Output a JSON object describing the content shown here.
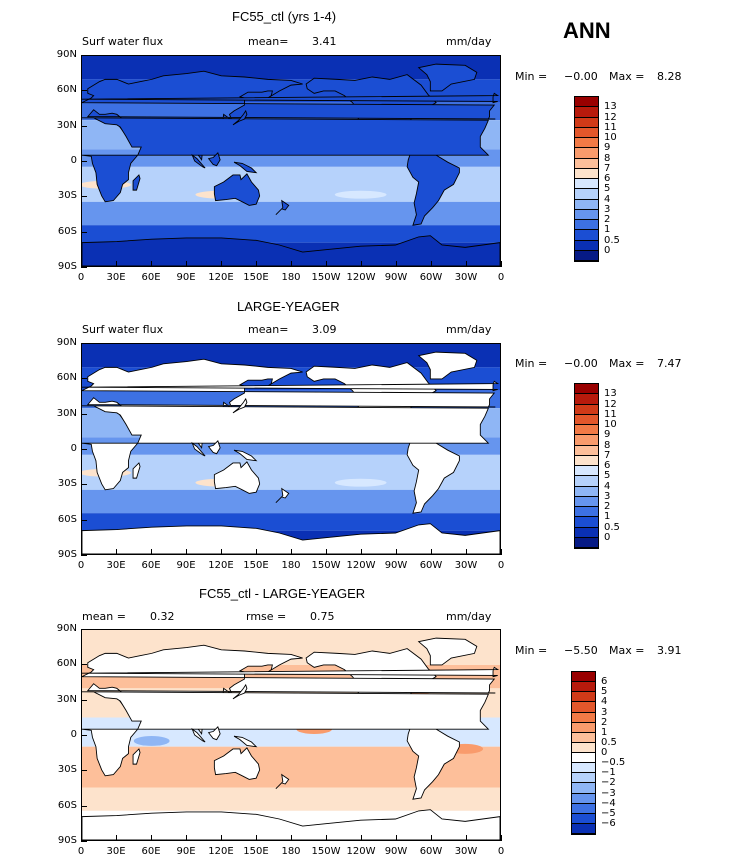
{
  "season": "ANN",
  "lat_labels": [
    "90N",
    "60N",
    "30N",
    "0",
    "30S",
    "60S",
    "90S"
  ],
  "lon_labels": [
    "0",
    "30E",
    "60E",
    "90E",
    "120E",
    "150E",
    "180",
    "150W",
    "120W",
    "90W",
    "60W",
    "30W",
    "0"
  ],
  "panels": [
    {
      "title": "FC55_ctl (yrs 1-4)",
      "left_label": "Surf water flux",
      "stat1_label": "mean=",
      "stat1_value": "3.41",
      "stat2_label": "",
      "stat2_value": "",
      "units": "mm/day",
      "min_label": "Min =",
      "min_value": "−0.00",
      "max_label": "Max =",
      "max_value": "8.28",
      "colorbar_labels": [
        "13",
        "12",
        "11",
        "10",
        "9",
        "8",
        "7",
        "6",
        "5",
        "4",
        "3",
        "2",
        "1",
        "0.5",
        "0"
      ],
      "colorbar_colors": [
        "#990000",
        "#b71a0c",
        "#d03a18",
        "#e3572b",
        "#f27a46",
        "#f99b6c",
        "#fdbf9a",
        "#fde3cc",
        "#d7e8ff",
        "#b6d2fb",
        "#8fb6f5",
        "#6695ee",
        "#3d71e3",
        "#1b4ed3",
        "#0a30b4",
        "#061a85"
      ],
      "land_fill": "#1b4ed3"
    },
    {
      "title": "LARGE-YEAGER",
      "left_label": "Surf water flux",
      "stat1_label": "mean=",
      "stat1_value": "3.09",
      "stat2_label": "",
      "stat2_value": "",
      "units": "mm/day",
      "min_label": "Min =",
      "min_value": "−0.00",
      "max_label": "Max =",
      "max_value": "7.47",
      "colorbar_labels": [
        "13",
        "12",
        "11",
        "10",
        "9",
        "8",
        "7",
        "6",
        "5",
        "4",
        "3",
        "2",
        "1",
        "0.5",
        "0"
      ],
      "colorbar_colors": [
        "#990000",
        "#b71a0c",
        "#d03a18",
        "#e3572b",
        "#f27a46",
        "#f99b6c",
        "#fdbf9a",
        "#fde3cc",
        "#d7e8ff",
        "#b6d2fb",
        "#8fb6f5",
        "#6695ee",
        "#3d71e3",
        "#1b4ed3",
        "#0a30b4",
        "#061a85"
      ],
      "land_fill": "#ffffff"
    },
    {
      "title": "FC55_ctl - LARGE-YEAGER",
      "left_label": "mean =",
      "stat1_label": "",
      "stat1_value": "0.32",
      "stat2_label": "rmse =",
      "stat2_value": "0.75",
      "units": "mm/day",
      "min_label": "Min =",
      "min_value": "−5.50",
      "max_label": "Max =",
      "max_value": "3.91",
      "colorbar_labels": [
        "6",
        "5",
        "4",
        "3",
        "2",
        "1",
        "0.5",
        "0",
        "−0.5",
        "−1",
        "−2",
        "−3",
        "−4",
        "−5",
        "−6"
      ],
      "colorbar_colors": [
        "#990000",
        "#b71a0c",
        "#d03a18",
        "#e3572b",
        "#f27a46",
        "#f99b6c",
        "#fdbf9a",
        "#fde3cc",
        "#ffffff",
        "#d7e8ff",
        "#b6d2fb",
        "#8fb6f5",
        "#6695ee",
        "#3d71e3",
        "#1b4ed3",
        "#0a30b4"
      ],
      "land_fill": "#ffffff"
    }
  ]
}
